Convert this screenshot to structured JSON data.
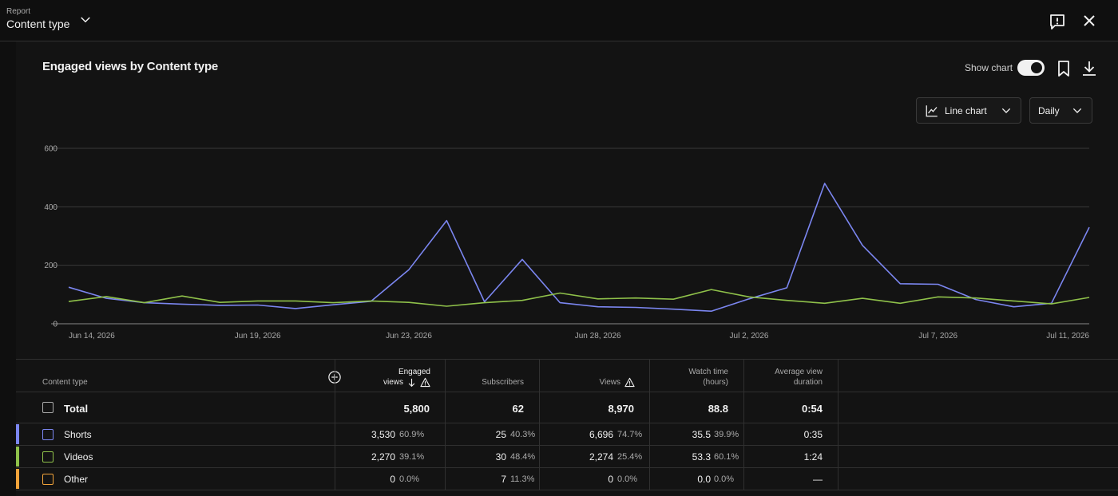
{
  "header": {
    "label": "Report",
    "title": "Content type"
  },
  "panel": {
    "title": "Engaged views by Content type",
    "show_chart_label": "Show chart",
    "show_chart_on": true,
    "chart_type_label": "Line chart",
    "interval_label": "Daily"
  },
  "chart_data": {
    "type": "line",
    "title": "Engaged views by Content type",
    "xlabel": "",
    "ylabel": "",
    "ylim": [
      0,
      600
    ],
    "yticks": [
      0,
      200,
      400,
      600
    ],
    "x": [
      "Jun 14, 2026",
      "Jun 15, 2026",
      "Jun 16, 2026",
      "Jun 17, 2026",
      "Jun 18, 2026",
      "Jun 19, 2026",
      "Jun 20, 2026",
      "Jun 21, 2026",
      "Jun 22, 2026",
      "Jun 23, 2026",
      "Jun 24, 2026",
      "Jun 25, 2026",
      "Jun 26, 2026",
      "Jun 27, 2026",
      "Jun 28, 2026",
      "Jun 29, 2026",
      "Jun 30, 2026",
      "Jul 1, 2026",
      "Jul 2, 2026",
      "Jul 3, 2026",
      "Jul 4, 2026",
      "Jul 5, 2026",
      "Jul 6, 2026",
      "Jul 7, 2026",
      "Jul 8, 2026",
      "Jul 9, 2026",
      "Jul 10, 2026",
      "Jul 11, 2026"
    ],
    "xtick_labels": [
      "Jun 14, 2026",
      "Jun 19, 2026",
      "Jun 23, 2026",
      "Jun 28, 2026",
      "Jul 2, 2026",
      "Jul 7, 2026",
      "Jul 11, 2026"
    ],
    "grid": true,
    "series": [
      {
        "name": "Shorts",
        "color": "#7b86f0",
        "values": [
          125,
          87,
          72,
          67,
          63,
          64,
          52,
          65,
          77,
          185,
          353,
          75,
          220,
          72,
          58,
          56,
          50,
          43,
          85,
          123,
          480,
          268,
          137,
          135,
          83,
          58,
          70,
          330
        ]
      },
      {
        "name": "Videos",
        "color": "#8fc14a",
        "values": [
          76,
          93,
          72,
          95,
          73,
          78,
          78,
          72,
          78,
          73,
          60,
          72,
          80,
          105,
          85,
          88,
          84,
          117,
          92,
          80,
          70,
          87,
          70,
          92,
          88,
          78,
          68,
          90
        ]
      }
    ]
  },
  "table": {
    "columns": {
      "content_type": "Content type",
      "engaged_views_1": "Engaged",
      "engaged_views_2": "views",
      "subscribers": "Subscribers",
      "views": "Views",
      "watch_time_1": "Watch time",
      "watch_time_2": "(hours)",
      "avg_duration_1": "Average view",
      "avg_duration_2": "duration"
    },
    "total": {
      "name": "Total",
      "engaged_views": "5,800",
      "subscribers": "62",
      "views": "8,970",
      "watch_time": "88.8",
      "avg_duration": "0:54"
    },
    "rows": [
      {
        "name": "Shorts",
        "color": "#7b86f0",
        "engaged_views": "3,530",
        "engaged_views_pct": "60.9%",
        "subscribers": "25",
        "subscribers_pct": "40.3%",
        "views": "6,696",
        "views_pct": "74.7%",
        "watch_time": "35.5",
        "watch_time_pct": "39.9%",
        "avg_duration": "0:35"
      },
      {
        "name": "Videos",
        "color": "#8fc14a",
        "engaged_views": "2,270",
        "engaged_views_pct": "39.1%",
        "subscribers": "30",
        "subscribers_pct": "48.4%",
        "views": "2,274",
        "views_pct": "25.4%",
        "watch_time": "53.3",
        "watch_time_pct": "60.1%",
        "avg_duration": "1:24"
      },
      {
        "name": "Other",
        "color": "#f2a33a",
        "engaged_views": "0",
        "engaged_views_pct": "0.0%",
        "subscribers": "7",
        "subscribers_pct": "11.3%",
        "views": "0",
        "views_pct": "0.0%",
        "watch_time": "0.0",
        "watch_time_pct": "0.0%",
        "avg_duration": "—"
      }
    ]
  },
  "icons": {
    "report_chevron": "chevron-down-icon",
    "feedback": "feedback-icon",
    "close": "close-icon",
    "bookmark": "bookmark-icon",
    "download": "download-icon",
    "line_chart": "line-chart-icon",
    "add_column": "add-circle-icon",
    "sort": "arrow-down-icon",
    "warning": "warning-icon"
  }
}
